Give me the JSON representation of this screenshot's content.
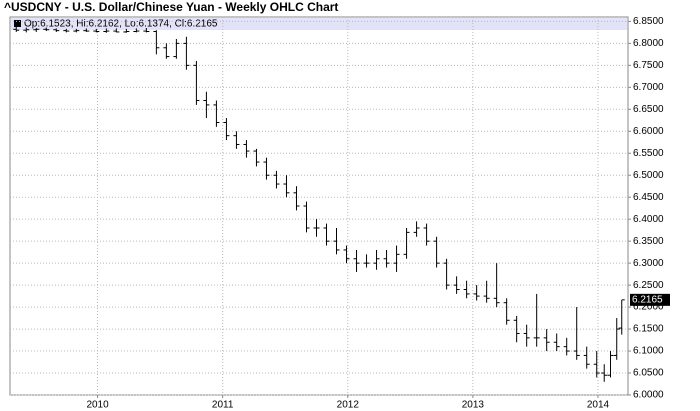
{
  "chart_data": {
    "type": "ohlc",
    "title": "^USDCNY - U.S. Dollar/Chinese Yuan - Weekly OHLC Chart",
    "header": "Op:6.1523, Hi:6.2162, Lo:6.1374, Cl:6.2165",
    "x": [
      2009.35,
      2009.43,
      2009.51,
      2009.59,
      2009.67,
      2009.75,
      2009.83,
      2009.91,
      2009.99,
      2010.07,
      2010.15,
      2010.23,
      2010.31,
      2010.39,
      2010.47,
      2010.55,
      2010.63,
      2010.71,
      2010.79,
      2010.87,
      2010.95,
      2011.03,
      2011.11,
      2011.19,
      2011.27,
      2011.35,
      2011.43,
      2011.51,
      2011.59,
      2011.67,
      2011.75,
      2011.83,
      2011.91,
      2011.99,
      2012.07,
      2012.15,
      2012.23,
      2012.31,
      2012.39,
      2012.47,
      2012.55,
      2012.63,
      2012.71,
      2012.79,
      2012.87,
      2012.95,
      2013.03,
      2013.11,
      2013.19,
      2013.27,
      2013.35,
      2013.43,
      2013.51,
      2013.59,
      2013.67,
      2013.75,
      2013.83,
      2013.91,
      2013.99,
      2014.05,
      2014.1,
      2014.15,
      2014.19
    ],
    "open": [
      6.832,
      6.83,
      6.831,
      6.832,
      6.831,
      6.829,
      6.828,
      6.829,
      6.828,
      6.827,
      6.828,
      6.826,
      6.827,
      6.828,
      6.827,
      6.79,
      6.77,
      6.8,
      6.75,
      6.67,
      6.66,
      6.62,
      6.59,
      6.57,
      6.555,
      6.53,
      6.5,
      6.48,
      6.46,
      6.43,
      6.38,
      6.38,
      6.35,
      6.33,
      6.31,
      6.3,
      6.3,
      6.31,
      6.3,
      6.32,
      6.37,
      6.38,
      6.35,
      6.3,
      6.25,
      6.24,
      6.23,
      6.225,
      6.22,
      6.21,
      6.17,
      6.14,
      6.13,
      6.13,
      6.12,
      6.11,
      6.1,
      6.09,
      6.07,
      6.05,
      6.045,
      6.09,
      6.1523
    ],
    "high": [
      6.838,
      6.836,
      6.835,
      6.836,
      6.834,
      6.833,
      6.833,
      6.834,
      6.833,
      6.834,
      6.834,
      6.833,
      6.834,
      6.835,
      6.83,
      6.8,
      6.81,
      6.815,
      6.76,
      6.69,
      6.67,
      6.63,
      6.6,
      6.58,
      6.56,
      6.54,
      6.51,
      6.5,
      6.475,
      6.44,
      6.4,
      6.39,
      6.38,
      6.34,
      6.33,
      6.32,
      6.33,
      6.33,
      6.34,
      6.38,
      6.395,
      6.39,
      6.36,
      6.31,
      6.27,
      6.26,
      6.25,
      6.26,
      6.3,
      6.22,
      6.18,
      6.16,
      6.23,
      6.15,
      6.14,
      6.13,
      6.2,
      6.11,
      6.1,
      6.07,
      6.1,
      6.175,
      6.2162
    ],
    "low": [
      6.826,
      6.825,
      6.826,
      6.828,
      6.826,
      6.825,
      6.825,
      6.826,
      6.825,
      6.824,
      6.825,
      6.824,
      6.825,
      6.825,
      6.775,
      6.765,
      6.765,
      6.74,
      6.66,
      6.63,
      6.61,
      6.58,
      6.56,
      6.54,
      6.52,
      6.49,
      6.47,
      6.45,
      6.42,
      6.37,
      6.36,
      6.34,
      6.32,
      6.3,
      6.28,
      6.29,
      6.285,
      6.29,
      6.28,
      6.31,
      6.36,
      6.34,
      6.29,
      6.24,
      6.23,
      6.22,
      6.215,
      6.21,
      6.2,
      6.16,
      6.12,
      6.11,
      6.11,
      6.1,
      6.1,
      6.09,
      6.08,
      6.06,
      6.04,
      6.03,
      6.04,
      6.08,
      6.1374
    ],
    "close": [
      6.83,
      6.831,
      6.832,
      6.831,
      6.829,
      6.828,
      6.829,
      6.828,
      6.827,
      6.828,
      6.826,
      6.827,
      6.828,
      6.827,
      6.79,
      6.77,
      6.8,
      6.75,
      6.67,
      6.66,
      6.62,
      6.59,
      6.57,
      6.555,
      6.53,
      6.5,
      6.48,
      6.46,
      6.43,
      6.38,
      6.38,
      6.35,
      6.33,
      6.31,
      6.3,
      6.3,
      6.31,
      6.3,
      6.32,
      6.37,
      6.38,
      6.35,
      6.3,
      6.25,
      6.24,
      6.23,
      6.225,
      6.22,
      6.21,
      6.17,
      6.14,
      6.13,
      6.13,
      6.12,
      6.11,
      6.1,
      6.09,
      6.07,
      6.05,
      6.045,
      6.09,
      6.15,
      6.2165
    ],
    "color": "#000000",
    "xlim": [
      2009.3,
      2014.24
    ],
    "xticks": [
      2010,
      2011,
      2012,
      2013,
      2014
    ],
    "ylim": [
      6.0,
      6.86
    ],
    "yticks": [
      {
        "value": 6.0,
        "label": "6.0000"
      },
      {
        "value": 6.05,
        "label": "6.0500"
      },
      {
        "value": 6.1,
        "label": "6.1000"
      },
      {
        "value": 6.15,
        "label": "6.1500"
      },
      {
        "value": 6.2,
        "label": "6.2000"
      },
      {
        "value": 6.25,
        "label": "6.2500"
      },
      {
        "value": 6.3,
        "label": "6.3000"
      },
      {
        "value": 6.35,
        "label": "6.3500"
      },
      {
        "value": 6.4,
        "label": "6.4000"
      },
      {
        "value": 6.45,
        "label": "6.4500"
      },
      {
        "value": 6.5,
        "label": "6.5000"
      },
      {
        "value": 6.55,
        "label": "6.5500"
      },
      {
        "value": 6.6,
        "label": "6.6000"
      },
      {
        "value": 6.65,
        "label": "6.6500"
      },
      {
        "value": 6.7,
        "label": "6.7000"
      },
      {
        "value": 6.75,
        "label": "6.7500"
      },
      {
        "value": 6.8,
        "label": "6.8000"
      },
      {
        "value": 6.85,
        "label": "6.8500"
      }
    ],
    "grid": true
  }
}
